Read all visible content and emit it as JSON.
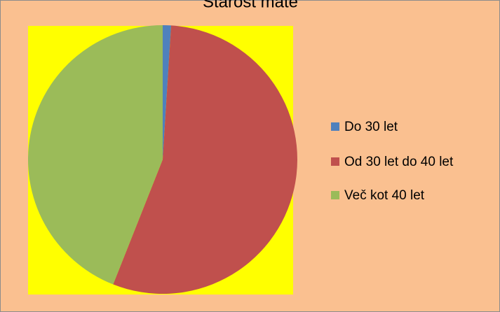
{
  "chart_data": {
    "type": "pie",
    "title": "Starost mate",
    "categories": [
      "Do 30 let",
      "Od 30 let do 40 let",
      "Več kot 40 let"
    ],
    "values": [
      1,
      55,
      44
    ],
    "colors": [
      "#4F81BD",
      "#C0504D",
      "#9BBB59"
    ],
    "legend": "right"
  }
}
